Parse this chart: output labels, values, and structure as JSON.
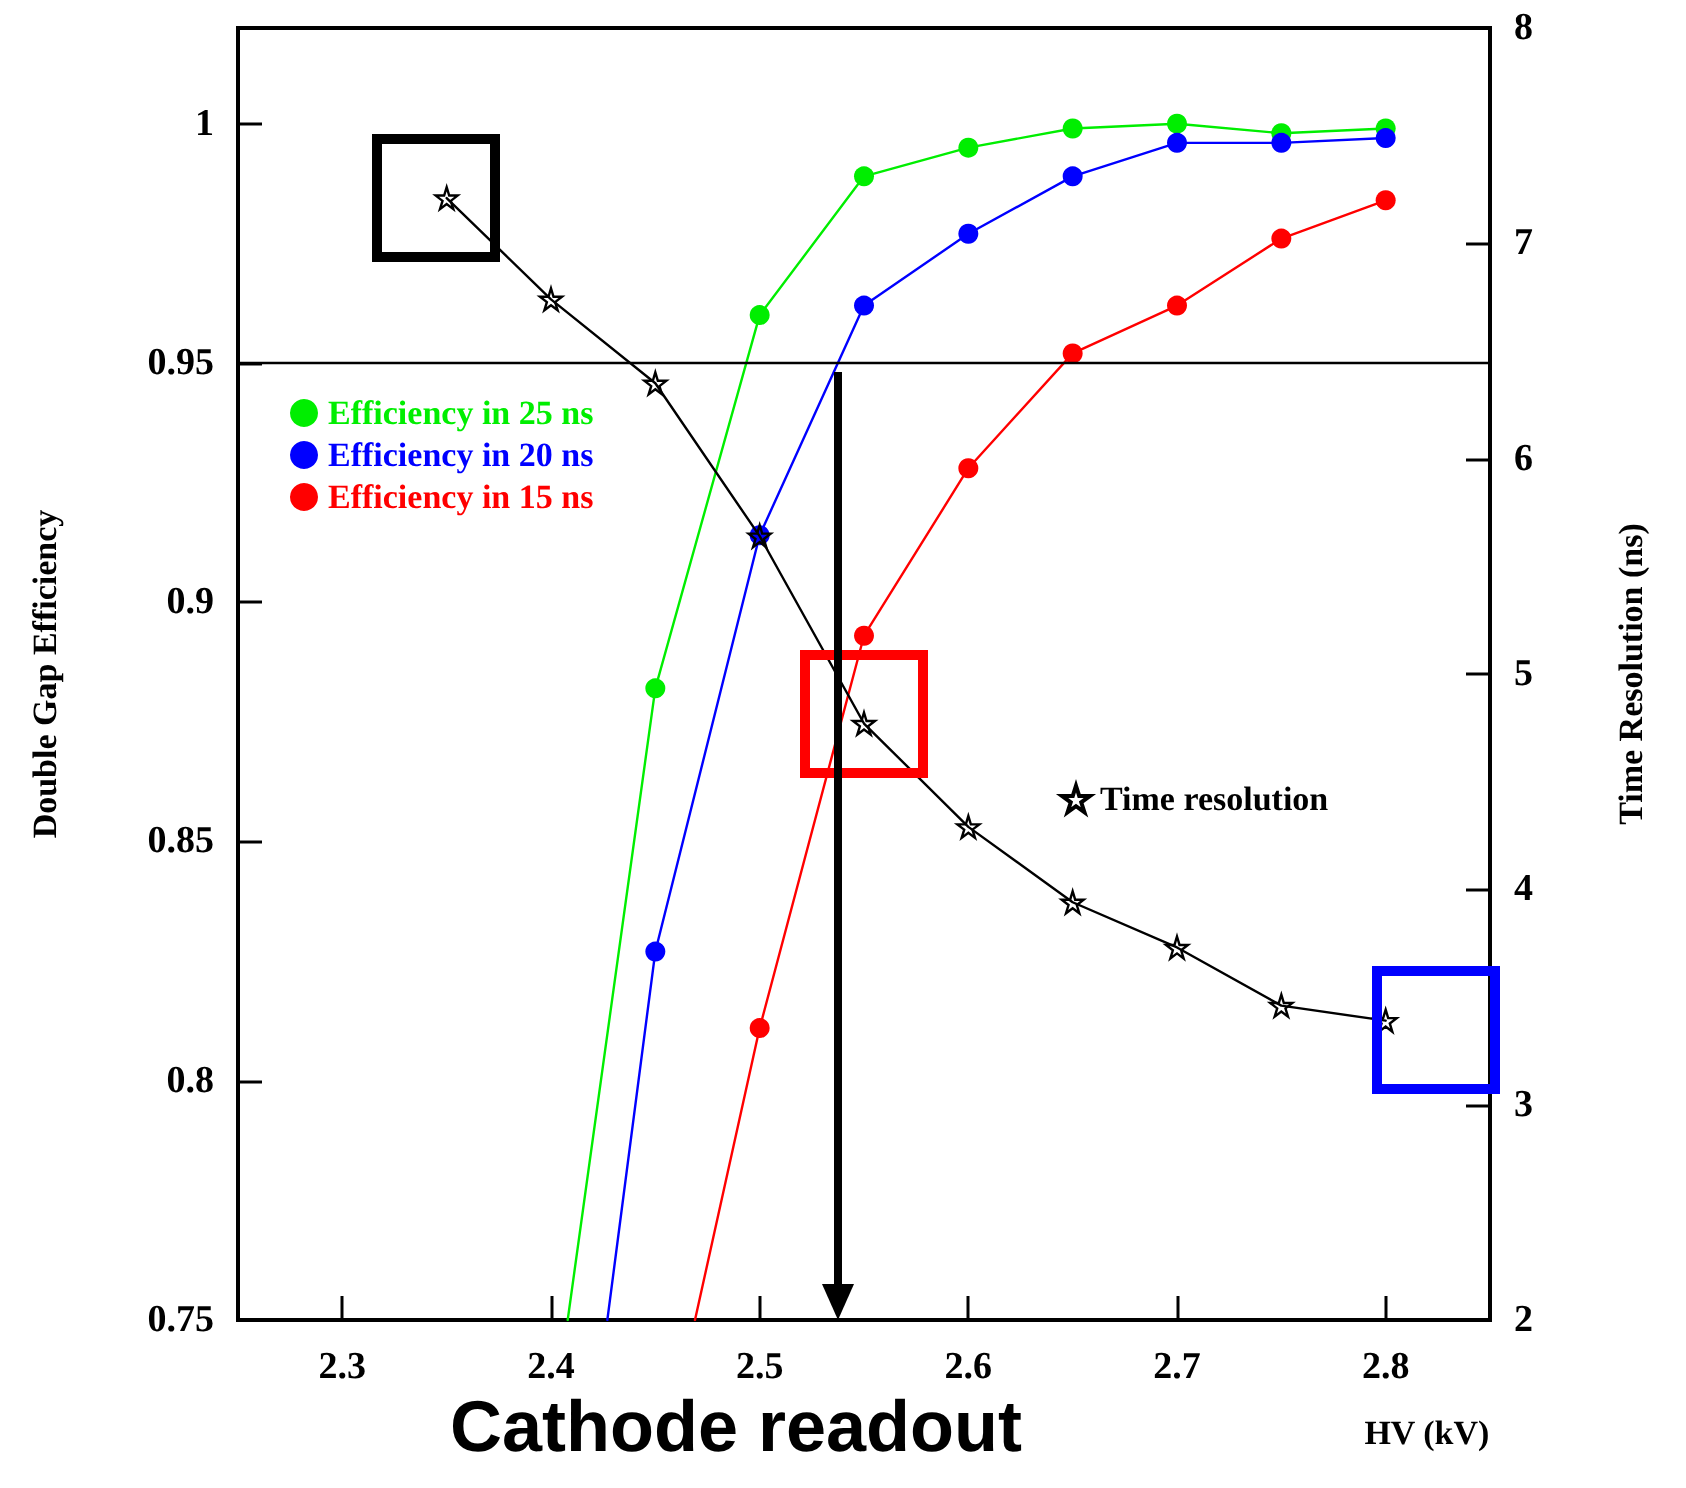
{
  "chart_data": {
    "type": "line",
    "xlabel": "HV (kV)",
    "ylabel": "Double Gap Efficiency",
    "y2label": "Time Resolution (ns)",
    "annotations": [
      "Cathode readout"
    ],
    "xlim": [
      2.25,
      2.85
    ],
    "xticks": [
      2.3,
      2.4,
      2.5,
      2.6,
      2.7,
      2.8
    ],
    "ylim": [
      0.75,
      1.02
    ],
    "yticks": [
      0.75,
      0.8,
      0.85,
      0.9,
      0.95,
      1
    ],
    "y2lim": [
      2,
      8
    ],
    "y2ticks": [
      2,
      3,
      4,
      5,
      6,
      7,
      8
    ],
    "legend": "top left",
    "marker": "circle",
    "line_style": "solid",
    "grid": false,
    "ref_lines": [
      {
        "axis": "y",
        "value": 0.95,
        "color": "#000000"
      }
    ],
    "series": [
      {
        "name": "Efficiency in 25 ns",
        "color": "#00ee00",
        "x": [
          2.408,
          2.45,
          2.5,
          2.55,
          2.6,
          2.65,
          2.7,
          2.75,
          2.8
        ],
        "values": [
          0.75,
          0.882,
          0.96,
          0.989,
          0.995,
          0.999,
          1.0,
          0.998,
          0.999
        ]
      },
      {
        "name": "Efficiency in 20 ns",
        "color": "#0000ff",
        "x": [
          2.427,
          2.45,
          2.5,
          2.55,
          2.6,
          2.65,
          2.7,
          2.75,
          2.8
        ],
        "values": [
          0.75,
          0.827,
          0.914,
          0.962,
          0.977,
          0.989,
          0.996,
          0.996,
          0.997
        ]
      },
      {
        "name": "Efficiency in 15 ns",
        "color": "#ff0000",
        "x": [
          2.469,
          2.5,
          2.55,
          2.6,
          2.65,
          2.7,
          2.75,
          2.8
        ],
        "values": [
          0.75,
          0.811,
          0.893,
          0.928,
          0.952,
          0.962,
          0.976,
          0.984
        ]
      },
      {
        "name": "Time resolution",
        "color": "#000000",
        "axis": "y2",
        "marker": "star",
        "x": [
          2.35,
          2.4,
          2.45,
          2.5,
          2.55,
          2.6,
          2.65,
          2.7,
          2.75,
          2.8
        ],
        "values": [
          7.21,
          6.74,
          6.35,
          5.64,
          4.77,
          4.29,
          3.94,
          3.73,
          3.46,
          3.39
        ]
      }
    ]
  }
}
